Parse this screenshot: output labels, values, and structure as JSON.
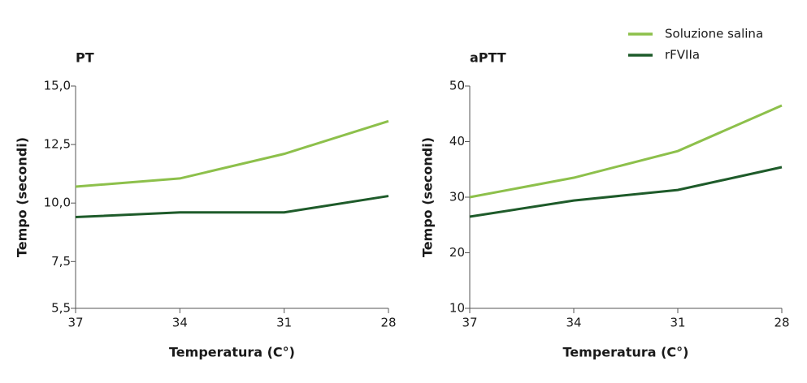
{
  "legend": [
    {
      "name": "Soluzione salina",
      "color": "#8dc04b"
    },
    {
      "name": "rFVIIa",
      "color": "#1e5b2a"
    }
  ],
  "chart_data": [
    {
      "type": "line",
      "title": "PT",
      "x_label": "Temperatura (C°)",
      "y_label": "Tempo (secondi)",
      "categories": [
        "37",
        "34",
        "31",
        "28"
      ],
      "series": [
        {
          "color": "#8dc04b",
          "values": [
            10.7,
            11.05,
            12.1,
            13.5
          ]
        },
        {
          "color": "#1e5b2a",
          "values": [
            9.4,
            9.6,
            9.6,
            10.3
          ]
        }
      ],
      "ylim": [
        5.5,
        15
      ],
      "yticks": [
        {
          "value": 5.5,
          "label": "5,5"
        },
        {
          "value": 7.5,
          "label": "7,5"
        },
        {
          "value": 10,
          "label": "10,0"
        },
        {
          "value": 12.5,
          "label": "12,5"
        },
        {
          "value": 15,
          "label": "15,0"
        }
      ]
    },
    {
      "type": "line",
      "title": "aPTT",
      "x_label": "Temperatura (C°)",
      "y_label": "Tempo (secondi)",
      "categories": [
        "37",
        "34",
        "31",
        "28"
      ],
      "series": [
        {
          "color": "#8dc04b",
          "values": [
            30,
            33.5,
            38.3,
            46.5
          ]
        },
        {
          "color": "#1e5b2a",
          "values": [
            26.5,
            29.4,
            31.3,
            35.4
          ]
        }
      ],
      "ylim": [
        10,
        50
      ],
      "yticks": [
        10,
        20,
        30,
        40,
        50
      ]
    }
  ]
}
